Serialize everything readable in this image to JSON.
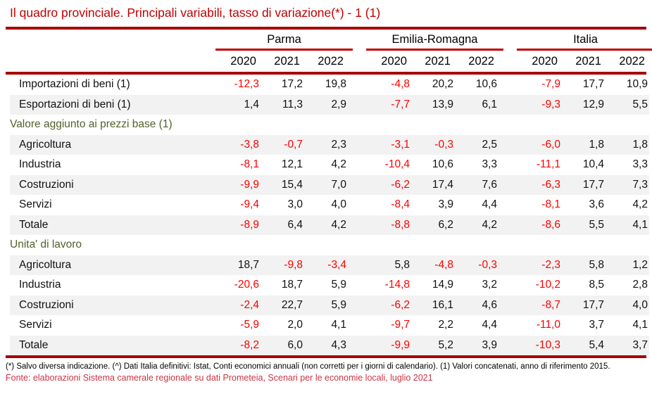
{
  "title": "Il quadro provinciale. Principali variabili, tasso di variazione(*) - 1 (1)",
  "colors": {
    "title_red": "#C00000",
    "rule_dark_red": "#A60000",
    "group_underline_red": "#C00000",
    "negative_value_red": "#FF0000",
    "section_green": "#4F6228",
    "stripe_gray": "#F2F2F2",
    "source_red": "#CC3344"
  },
  "table": {
    "groups": [
      {
        "label": "Parma"
      },
      {
        "label": "Emilia-Romagna"
      },
      {
        "label": "Italia"
      }
    ],
    "years": [
      "2020",
      "2021",
      "2022"
    ],
    "rows": [
      {
        "type": "data",
        "label": "Importazioni di beni (1)",
        "values": [
          "-12,3",
          "17,2",
          "19,8",
          "-4,8",
          "20,2",
          "10,6",
          "-7,9",
          "17,7",
          "10,9"
        ]
      },
      {
        "type": "data",
        "label": "Esportazioni di beni (1)",
        "values": [
          "1,4",
          "11,3",
          "2,9",
          "-7,7",
          "13,9",
          "6,1",
          "-9,3",
          "12,9",
          "5,5"
        ]
      },
      {
        "type": "section",
        "label": "Valore aggiunto ai prezzi base (1)"
      },
      {
        "type": "data",
        "label": "Agricoltura",
        "values": [
          "-3,8",
          "-0,7",
          "2,3",
          "-3,1",
          "-0,3",
          "2,5",
          "-6,0",
          "1,8",
          "1,8"
        ]
      },
      {
        "type": "data",
        "label": "Industria",
        "values": [
          "-8,1",
          "12,1",
          "4,2",
          "-10,4",
          "10,6",
          "3,3",
          "-11,1",
          "10,4",
          "3,3"
        ]
      },
      {
        "type": "data",
        "label": "Costruzioni",
        "values": [
          "-9,9",
          "15,4",
          "7,0",
          "-6,2",
          "17,4",
          "7,6",
          "-6,3",
          "17,7",
          "7,3"
        ]
      },
      {
        "type": "data",
        "label": "Servizi",
        "values": [
          "-9,4",
          "3,0",
          "4,0",
          "-8,4",
          "3,9",
          "4,4",
          "-8,1",
          "3,6",
          "4,2"
        ]
      },
      {
        "type": "data",
        "label": "Totale",
        "values": [
          "-8,9",
          "6,4",
          "4,2",
          "-8,8",
          "6,2",
          "4,2",
          "-8,6",
          "5,5",
          "4,1"
        ]
      },
      {
        "type": "section",
        "label": "Unita' di lavoro"
      },
      {
        "type": "data",
        "label": "Agricoltura",
        "values": [
          "18,7",
          "-9,8",
          "-3,4",
          "5,8",
          "-4,8",
          "-0,3",
          "-2,3",
          "5,8",
          "1,2"
        ]
      },
      {
        "type": "data",
        "label": "Industria",
        "values": [
          "-20,6",
          "18,7",
          "5,9",
          "-14,8",
          "14,9",
          "3,2",
          "-10,2",
          "8,5",
          "2,8"
        ]
      },
      {
        "type": "data",
        "label": "Costruzioni",
        "values": [
          "-2,4",
          "22,7",
          "5,9",
          "-6,2",
          "16,1",
          "4,6",
          "-8,7",
          "17,7",
          "4,0"
        ]
      },
      {
        "type": "data",
        "label": "Servizi",
        "values": [
          "-5,9",
          "2,0",
          "4,1",
          "-9,7",
          "2,2",
          "4,4",
          "-11,0",
          "3,7",
          "4,1"
        ]
      },
      {
        "type": "data",
        "label": "Totale",
        "values": [
          "-8,2",
          "6,0",
          "4,3",
          "-9,9",
          "5,2",
          "3,9",
          "-10,3",
          "5,4",
          "3,7"
        ]
      }
    ]
  },
  "footnotes": {
    "note": "(*) Salvo diversa indicazione. (^) Dati Italia definitivi: Istat, Conti economici annuali (non corretti per i giorni di calendario). (1) Valori concatenati, anno di riferimento 2015.",
    "source": "Fonte: elaborazioni Sistema camerale regionale su dati Prometeia, Scenari per le economie locali, luglio 2021"
  }
}
